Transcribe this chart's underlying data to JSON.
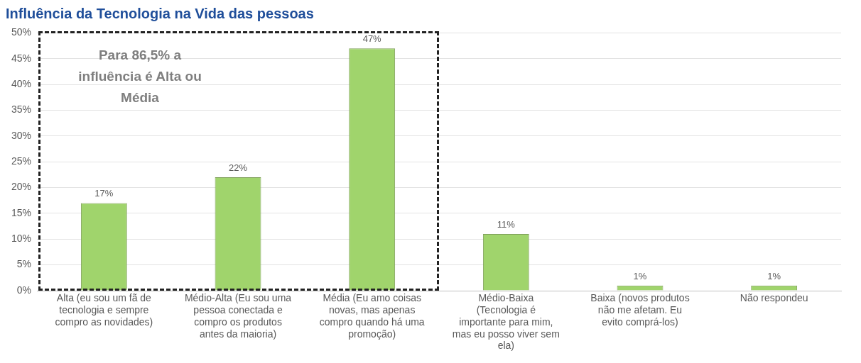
{
  "chart_data": {
    "type": "bar",
    "title": "Influência da Tecnologia na Vida das pessoas",
    "categories": [
      "Alta (eu sou um fã de tecnologia e sempre compro as novidades)",
      "Médio-Alta (Eu sou uma pessoa conectada e compro os produtos antes da maioria)",
      "Média (Eu amo coisas novas, mas apenas compro quando há uma promoção)",
      "Médio-Baixa (Tecnologia é importante para mim, mas eu posso viver sem ela)",
      "Baixa (novos produtos não me afetam. Eu evito comprá-los)",
      "Não respondeu"
    ],
    "values": [
      17,
      22,
      47,
      11,
      1,
      1
    ],
    "value_labels": [
      "17%",
      "22%",
      "47%",
      "11%",
      "1%",
      "1%"
    ],
    "color": "#a0d46c",
    "ylim": [
      0,
      50
    ],
    "yticks": [
      {
        "value": 0,
        "label": "0%"
      },
      {
        "value": 5,
        "label": "5%"
      },
      {
        "value": 10,
        "label": "10%"
      },
      {
        "value": 15,
        "label": "15%"
      },
      {
        "value": 20,
        "label": "20%"
      },
      {
        "value": 25,
        "label": "25%"
      },
      {
        "value": 30,
        "label": "30%"
      },
      {
        "value": 35,
        "label": "35%"
      },
      {
        "value": 40,
        "label": "40%"
      },
      {
        "value": 45,
        "label": "45%"
      },
      {
        "value": 50,
        "label": "50%"
      }
    ],
    "grid": "y",
    "annotations": [
      "Para 86,5% a influência é Alta ou Média"
    ]
  }
}
